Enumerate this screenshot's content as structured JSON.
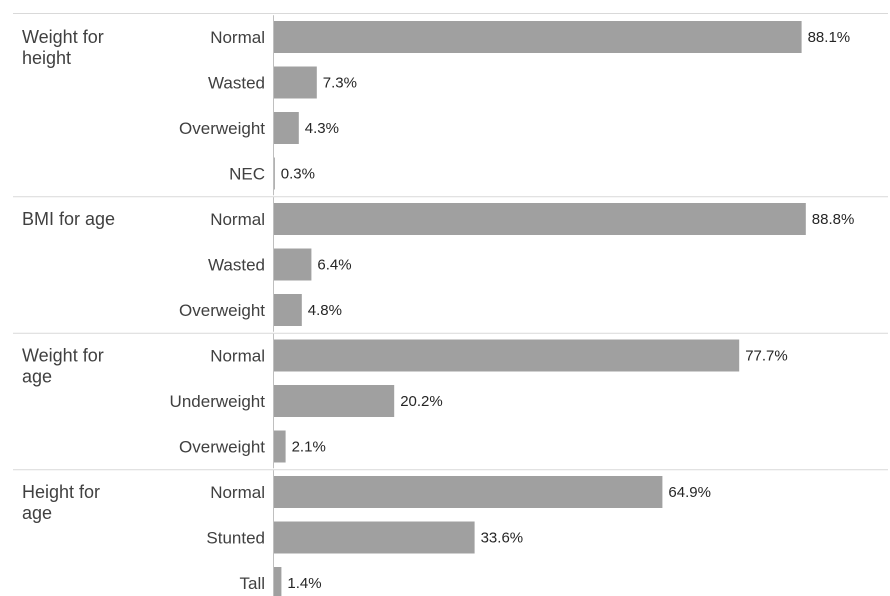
{
  "chart_data": {
    "type": "bar",
    "orientation": "horizontal",
    "value_suffix": "%",
    "colors": {
      "bar": "#a0a0a0"
    },
    "groups": [
      {
        "name": "Weight for height",
        "name_lines": [
          "Weight for",
          "height"
        ],
        "categories": [
          "Normal",
          "Wasted",
          "Overweight",
          "NEC"
        ],
        "values": [
          88.1,
          7.3,
          4.3,
          0.3
        ],
        "labels": [
          "88.1%",
          "7.3%",
          "4.3%",
          "0.3%"
        ]
      },
      {
        "name": "BMI for age",
        "name_lines": [
          "BMI for age"
        ],
        "categories": [
          "Normal",
          "Wasted",
          "Overweight"
        ],
        "values": [
          88.8,
          6.4,
          4.8
        ],
        "labels": [
          "88.8%",
          "6.4%",
          "4.8%"
        ]
      },
      {
        "name": "Weight for age",
        "name_lines": [
          "Weight for",
          "age"
        ],
        "categories": [
          "Normal",
          "Underweight",
          "Overweight"
        ],
        "values": [
          77.7,
          20.2,
          2.1
        ],
        "labels": [
          "77.7%",
          "20.2%",
          "2.1%"
        ]
      },
      {
        "name": "Height for age",
        "name_lines": [
          "Height for",
          "age"
        ],
        "categories": [
          "Normal",
          "Stunted",
          "Tall"
        ],
        "values": [
          64.9,
          33.6,
          1.4
        ],
        "labels": [
          "64.9%",
          "33.6%",
          "1.4%"
        ]
      }
    ],
    "xlim": [
      0,
      100
    ],
    "grid": false,
    "legend": "none"
  }
}
